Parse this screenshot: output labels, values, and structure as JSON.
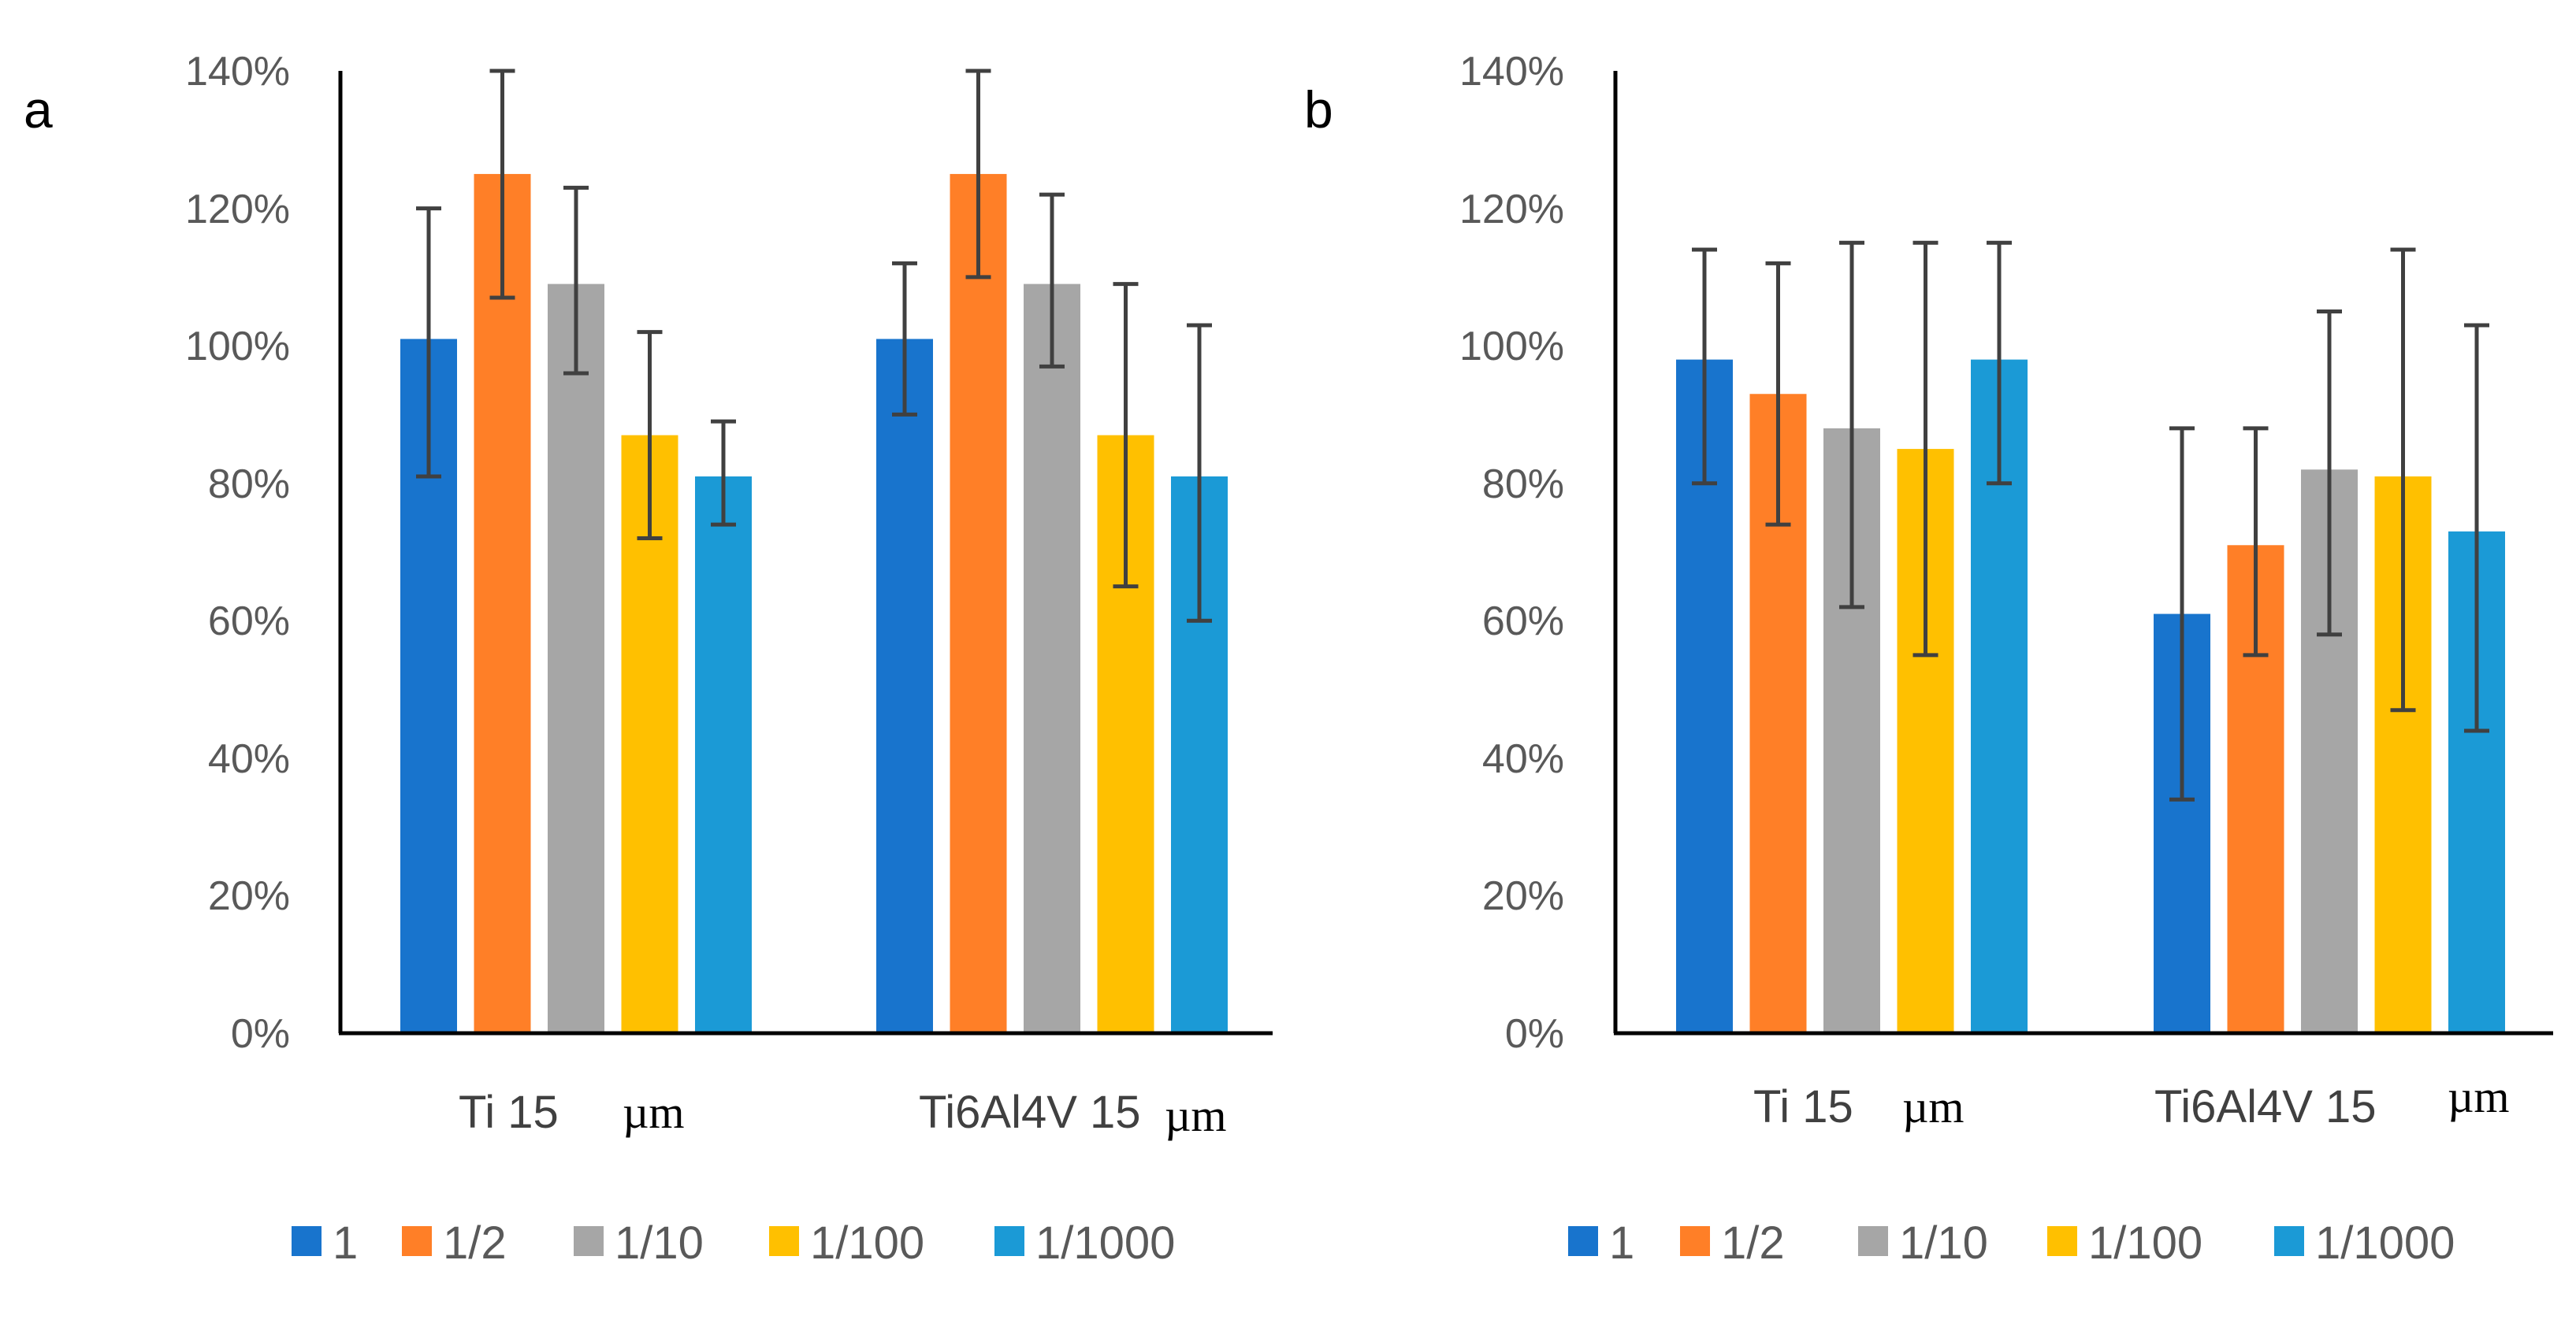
{
  "colors": {
    "series": [
      "#1874CD",
      "#FF7F27",
      "#A6A6A6",
      "#FFC000",
      "#1B9AD6"
    ],
    "error_bar": "#404040",
    "axis": "#000000",
    "tick_text": "#595959"
  },
  "chart_data": [
    {
      "panel": "a",
      "type": "bar",
      "categories": [
        "Ti 15",
        "Ti6Al4V 15"
      ],
      "category_units": [
        "µm",
        "µm"
      ],
      "yticks": [
        "0%",
        "20%",
        "40%",
        "60%",
        "80%",
        "100%",
        "120%",
        "140%"
      ],
      "ylim": [
        0,
        140
      ],
      "series": [
        {
          "name": "1",
          "values": [
            101,
            101
          ],
          "error_low": [
            81,
            90
          ],
          "error_high": [
            120,
            112
          ]
        },
        {
          "name": "1/2",
          "values": [
            125,
            125
          ],
          "error_low": [
            107,
            110
          ],
          "error_high": [
            140,
            140
          ]
        },
        {
          "name": "1/10",
          "values": [
            109,
            109
          ],
          "error_low": [
            96,
            97
          ],
          "error_high": [
            123,
            122
          ]
        },
        {
          "name": "1/100",
          "values": [
            87,
            87
          ],
          "error_low": [
            72,
            65
          ],
          "error_high": [
            102,
            109
          ]
        },
        {
          "name": "1/1000",
          "values": [
            81,
            81
          ],
          "error_low": [
            74,
            60
          ],
          "error_high": [
            89,
            103
          ]
        }
      ],
      "legend": [
        "1",
        "1/2",
        "1/10",
        "1/100",
        "1/1000"
      ],
      "legend_position": "bottom"
    },
    {
      "panel": "b",
      "type": "bar",
      "categories": [
        "Ti 15",
        "Ti6Al4V 15"
      ],
      "category_units": [
        "µm",
        "µm"
      ],
      "yticks": [
        "0%",
        "20%",
        "40%",
        "60%",
        "80%",
        "100%",
        "120%",
        "140%"
      ],
      "ylim": [
        0,
        140
      ],
      "series": [
        {
          "name": "1",
          "values": [
            98,
            61
          ],
          "error_low": [
            80,
            34
          ],
          "error_high": [
            114,
            88
          ]
        },
        {
          "name": "1/2",
          "values": [
            93,
            71
          ],
          "error_low": [
            74,
            55
          ],
          "error_high": [
            112,
            88
          ]
        },
        {
          "name": "1/10",
          "values": [
            88,
            82
          ],
          "error_low": [
            62,
            58
          ],
          "error_high": [
            115,
            105
          ]
        },
        {
          "name": "1/100",
          "values": [
            85,
            81
          ],
          "error_low": [
            55,
            47
          ],
          "error_high": [
            115,
            114
          ]
        },
        {
          "name": "1/1000",
          "values": [
            98,
            73
          ],
          "error_low": [
            80,
            44
          ],
          "error_high": [
            115,
            103
          ]
        }
      ],
      "legend": [
        "1",
        "1/2",
        "1/10",
        "1/100",
        "1/1000"
      ],
      "legend_position": "bottom"
    }
  ]
}
